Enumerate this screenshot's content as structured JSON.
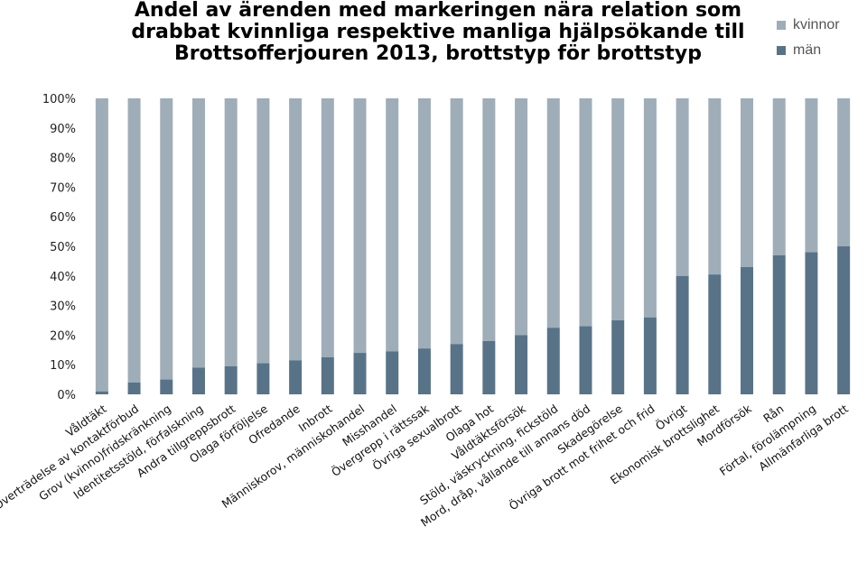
{
  "chart_data": {
    "type": "bar",
    "stacked": true,
    "title_lines": [
      "Andel av ärenden med markeringen nära relation som",
      "drabbat kvinnliga respektive manliga hjälpsökande till",
      "Brottsofferjouren 2013, brottstyp för brottstyp"
    ],
    "xlabel": "",
    "ylabel": "",
    "ylim": [
      0,
      100
    ],
    "yticks": [
      "0%",
      "10%",
      "20%",
      "30%",
      "40%",
      "50%",
      "60%",
      "70%",
      "80%",
      "90%",
      "100%"
    ],
    "grid": false,
    "legend_position": "top-right",
    "categories": [
      "Våldtäkt",
      "Överträdelse av kontaktförbud",
      "Grov (kvinno)fridskränkning",
      "Identitetsstöld, förfalskning",
      "Andra tillgreppsbrott",
      "Olaga förföljelse",
      "Ofredande",
      "Inbrott",
      "Människorov, människohandel",
      "Misshandel",
      "Övergrepp i rättssak",
      "Övriga sexualbrott",
      "Olaga hot",
      "Våldtäktsförsök",
      "Stöld, väskryckning, fickstöld",
      "Mord, dråp, vållande till annans död",
      "Skadegörelse",
      "Övriga brott mot frihet och frid",
      "Övrigt",
      "Ekonomisk brottslighet",
      "Mordförsök",
      "Rån",
      "Förtal, förolämpning",
      "Allmänfarliga brott"
    ],
    "series": [
      {
        "name": "män",
        "color": "#587387",
        "values": [
          1,
          4,
          5,
          9,
          9.5,
          10.5,
          11.5,
          12.5,
          14,
          14.5,
          15.5,
          17,
          18,
          20,
          22.5,
          23,
          25,
          26,
          40,
          40.5,
          43,
          47,
          48,
          50
        ]
      },
      {
        "name": "kvinnor",
        "color": "#9fadb8",
        "values": [
          99,
          96,
          95,
          91,
          90.5,
          89.5,
          88.5,
          87.5,
          86,
          85.5,
          84.5,
          83,
          82,
          80,
          77.5,
          77,
          75,
          74,
          60,
          59.5,
          57,
          53,
          52,
          50
        ]
      }
    ]
  }
}
